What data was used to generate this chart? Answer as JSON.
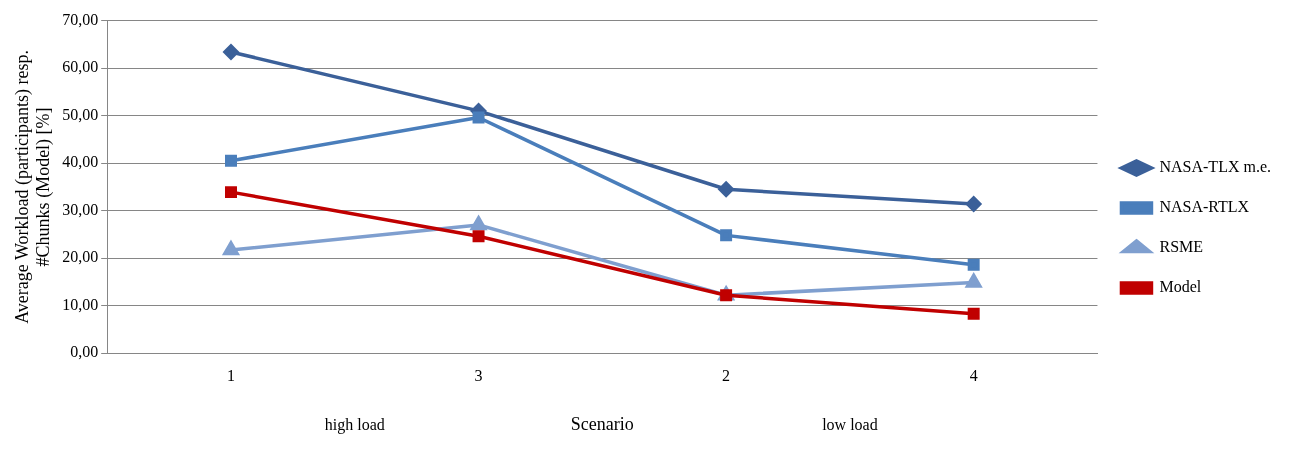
{
  "chart_data": {
    "type": "line",
    "xlabel": "Scenario",
    "ylabel": "Average Workload (participants) resp. #Chunks (Model) [%]",
    "categories": [
      "1",
      "3",
      "2",
      "4"
    ],
    "series": [
      {
        "name": "NASA-TLX m.e.",
        "color": "#3b6099",
        "marker": "diamond",
        "values": [
          63.4,
          51.0,
          34.5,
          31.4
        ]
      },
      {
        "name": "NASA-RTLX",
        "color": "#4a7ebb",
        "marker": "square",
        "values": [
          40.5,
          49.6,
          24.8,
          18.6
        ]
      },
      {
        "name": "RSME",
        "color": "#7f9fcf",
        "marker": "triangle",
        "values": [
          21.7,
          27.0,
          12.2,
          14.9
        ]
      },
      {
        "name": "Model",
        "color": "#c00000",
        "marker": "square",
        "values": [
          33.9,
          24.6,
          12.2,
          8.3
        ]
      }
    ],
    "ylim": [
      0,
      70
    ],
    "yticks": [
      {
        "value": 0,
        "label": "0,00"
      },
      {
        "value": 10,
        "label": "10,00"
      },
      {
        "value": 20,
        "label": "20,00"
      },
      {
        "value": 30,
        "label": "30,00"
      },
      {
        "value": 40,
        "label": "40,00"
      },
      {
        "value": 50,
        "label": "50,00"
      },
      {
        "value": 60,
        "label": "60,00"
      },
      {
        "value": 70,
        "label": "70,00"
      }
    ],
    "grid": "y",
    "legend": "right",
    "line_style": "solid",
    "annotations": [
      "high load",
      "low load"
    ]
  }
}
